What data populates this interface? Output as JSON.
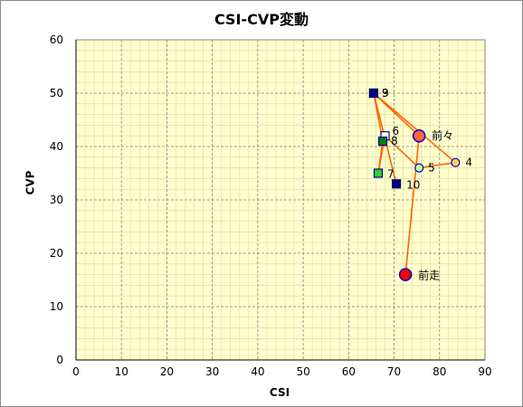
{
  "chart_data": {
    "type": "scatter",
    "title": "CSI-CVP変動",
    "xlabel": "CSI",
    "ylabel": "CVP",
    "xlim": [
      0,
      90
    ],
    "ylim": [
      0,
      60
    ],
    "x_ticks": [
      0,
      10,
      20,
      30,
      40,
      50,
      60,
      70,
      80,
      90
    ],
    "y_ticks": [
      0,
      10,
      20,
      30,
      40,
      50,
      60
    ],
    "grid": true,
    "plot_background": "#ffffcc",
    "line_color": "#ff6600",
    "points": [
      {
        "label": "前走",
        "x": 72.5,
        "y": 16,
        "fill": "#ff0000",
        "stroke": "#0000cc",
        "shape": "circle-large"
      },
      {
        "label": "前々",
        "x": 75.5,
        "y": 42,
        "fill": "#ff6633",
        "stroke": "#0000cc",
        "shape": "circle-large"
      },
      {
        "label": "4",
        "x": 83.5,
        "y": 37,
        "fill": "#ffcc66",
        "stroke": "#0000cc",
        "shape": "circle"
      },
      {
        "label": "5",
        "x": 75.5,
        "y": 36,
        "fill": "#ccff99",
        "stroke": "#0000cc",
        "shape": "circle"
      },
      {
        "label": "6",
        "x": 68,
        "y": 42,
        "fill": "#ffffff",
        "stroke": "#000099",
        "shape": "square"
      },
      {
        "label": "7",
        "x": 66.5,
        "y": 35,
        "fill": "#33cc33",
        "stroke": "#000099",
        "shape": "square"
      },
      {
        "label": "8",
        "x": 67.5,
        "y": 41,
        "fill": "#008000",
        "stroke": "#000099",
        "shape": "square"
      },
      {
        "label": "9",
        "x": 65.5,
        "y": 50,
        "fill": "#000080",
        "stroke": "#000060",
        "shape": "square"
      },
      {
        "label": "3",
        "x": 65.5,
        "y": 50,
        "fill": "#000080",
        "stroke": "#000060",
        "shape": "square"
      },
      {
        "label": "10",
        "x": 70.5,
        "y": 33,
        "fill": "#000080",
        "stroke": "#000060",
        "shape": "square"
      }
    ],
    "line_path_labels": [
      "前走",
      "前々",
      "3",
      "4",
      "5",
      "6",
      "7",
      "8",
      "9",
      "10"
    ]
  }
}
